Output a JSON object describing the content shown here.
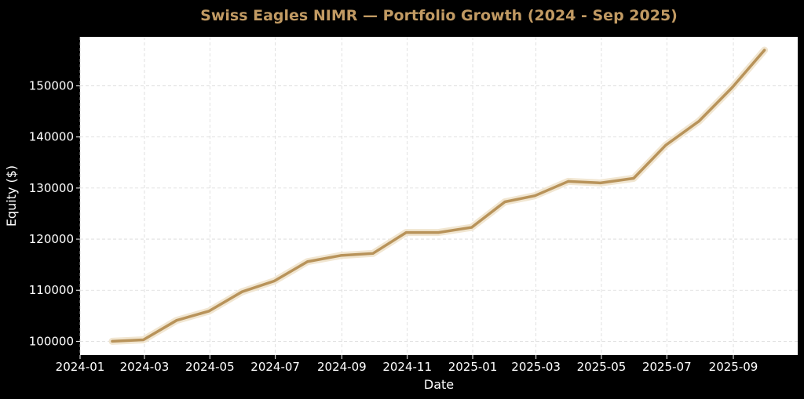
{
  "colors": {
    "background": "#000000",
    "plot_background": "#ffffff",
    "line": "#b8935a",
    "line_glow": "#efe3cc",
    "title": "#c19a63",
    "text": "#ffffff",
    "grid": "#d9d9d9"
  },
  "chart_data": {
    "type": "line",
    "title": "Swiss Eagles NIMR — Portfolio Growth (2024 - Sep 2025)",
    "xlabel": "Date",
    "ylabel": "Equity ($)",
    "x_axis_type": "date",
    "xlim": [
      "2024-01-01",
      "2025-10-31"
    ],
    "ylim": [
      97300,
      159600
    ],
    "grid": true,
    "legend": "none",
    "x_ticks": [
      "2024-01",
      "2024-03",
      "2024-05",
      "2024-07",
      "2024-09",
      "2024-11",
      "2025-01",
      "2025-03",
      "2025-05",
      "2025-07",
      "2025-09"
    ],
    "x_tick_dates": [
      "2024-01-01",
      "2024-03-01",
      "2024-05-01",
      "2024-07-01",
      "2024-09-01",
      "2024-11-01",
      "2025-01-01",
      "2025-03-01",
      "2025-05-01",
      "2025-07-01",
      "2025-09-01"
    ],
    "y_ticks": [
      100000,
      110000,
      120000,
      130000,
      140000,
      150000
    ],
    "y_tick_labels": [
      "100000",
      "110000",
      "120000",
      "130000",
      "140000",
      "150000"
    ],
    "x": [
      "2024-01-31",
      "2024-02-29",
      "2024-03-31",
      "2024-04-30",
      "2024-05-31",
      "2024-06-30",
      "2024-07-31",
      "2024-08-31",
      "2024-09-30",
      "2024-10-31",
      "2024-11-30",
      "2024-12-31",
      "2025-01-31",
      "2025-02-28",
      "2025-03-31",
      "2025-04-30",
      "2025-05-31",
      "2025-06-30",
      "2025-07-31",
      "2025-08-31",
      "2025-09-30"
    ],
    "series": [
      {
        "values": [
          100000,
          100300,
          104100,
          105900,
          109700,
          111800,
          115600,
          116800,
          117200,
          121300,
          121300,
          122300,
          127300,
          128500,
          131300,
          131000,
          131900,
          138400,
          143100,
          149700,
          157000
        ]
      }
    ]
  }
}
